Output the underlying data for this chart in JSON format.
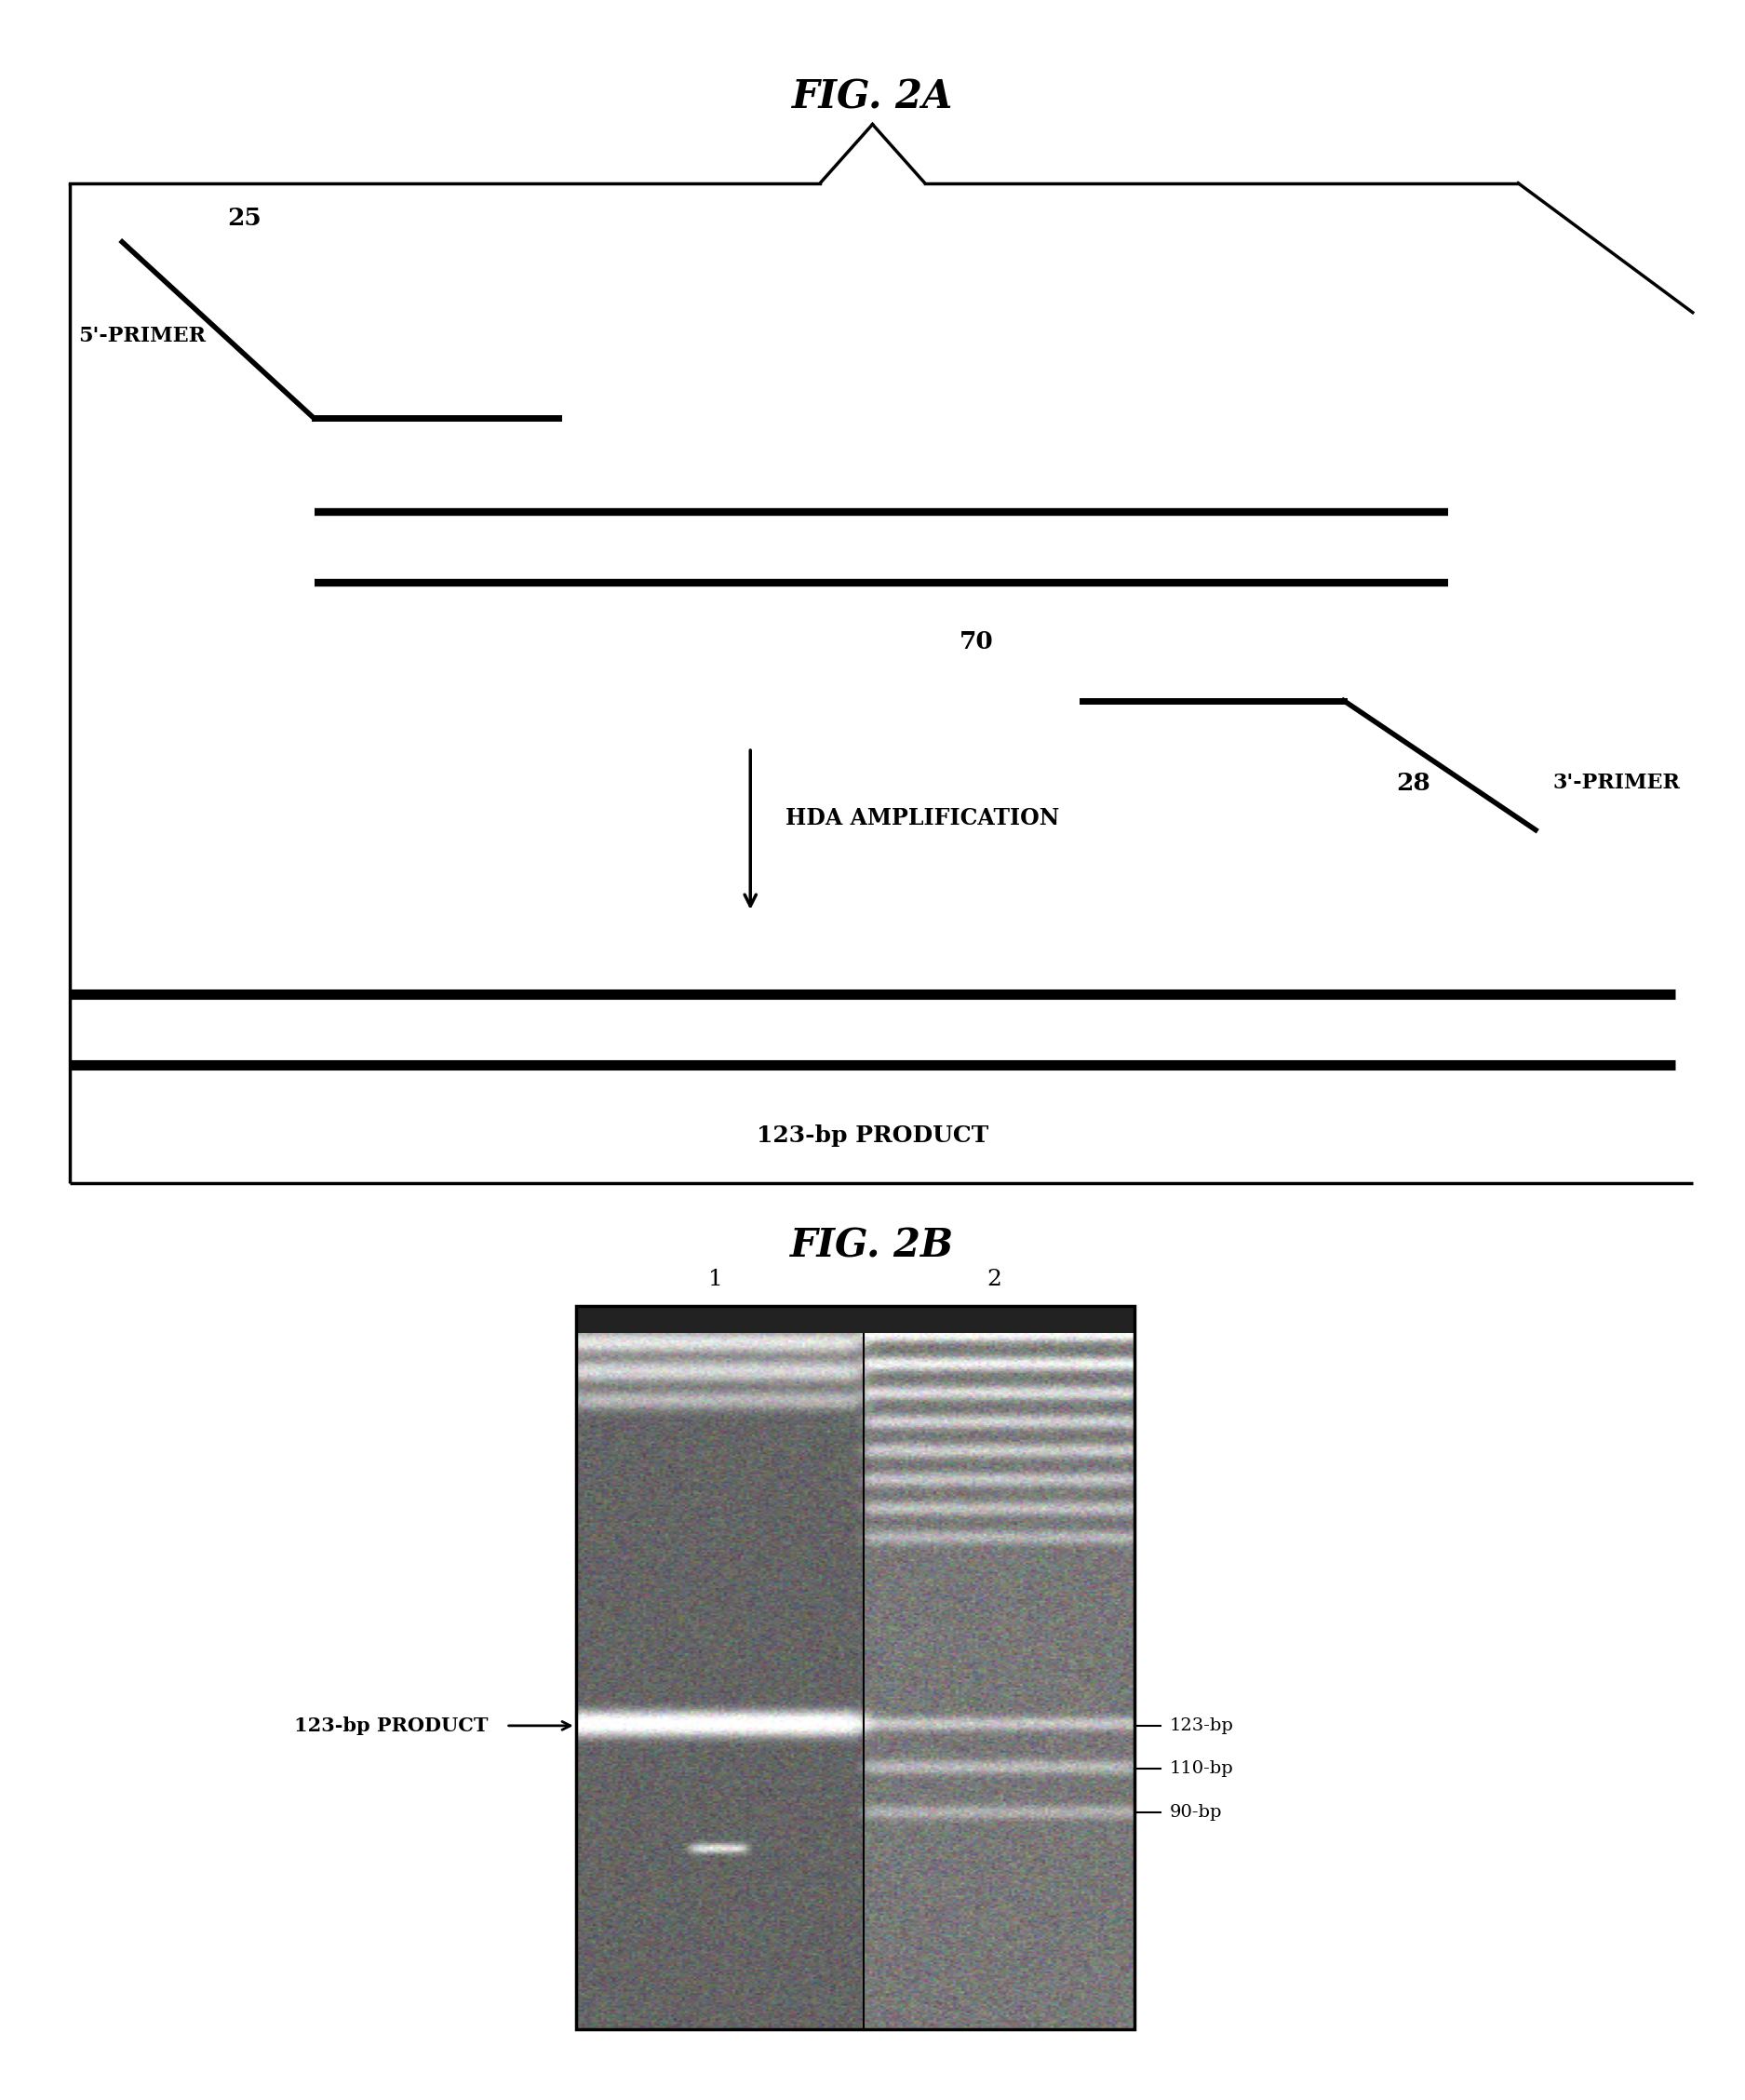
{
  "fig_title_a": "FIG. 2A",
  "fig_title_b": "FIG. 2B",
  "background_color": "#ffffff",
  "line_color": "#000000",
  "text_color": "#000000",
  "title_fontsize": 30,
  "label_fontsize": 16,
  "fig2a": {
    "label_25": "25",
    "label_5primer": "5'-PRIMER",
    "label_70": "70",
    "label_28": "28",
    "label_3primer": "3'-PRIMER",
    "arrow_label": "HDA AMPLIFICATION",
    "product_label": "123-bp PRODUCT"
  },
  "fig2b": {
    "lane1_label": "1",
    "lane2_label": "2",
    "left_annotation": "123-bp PRODUCT",
    "right_labels": [
      "123-bp",
      "110-bp",
      "90-bp"
    ]
  }
}
